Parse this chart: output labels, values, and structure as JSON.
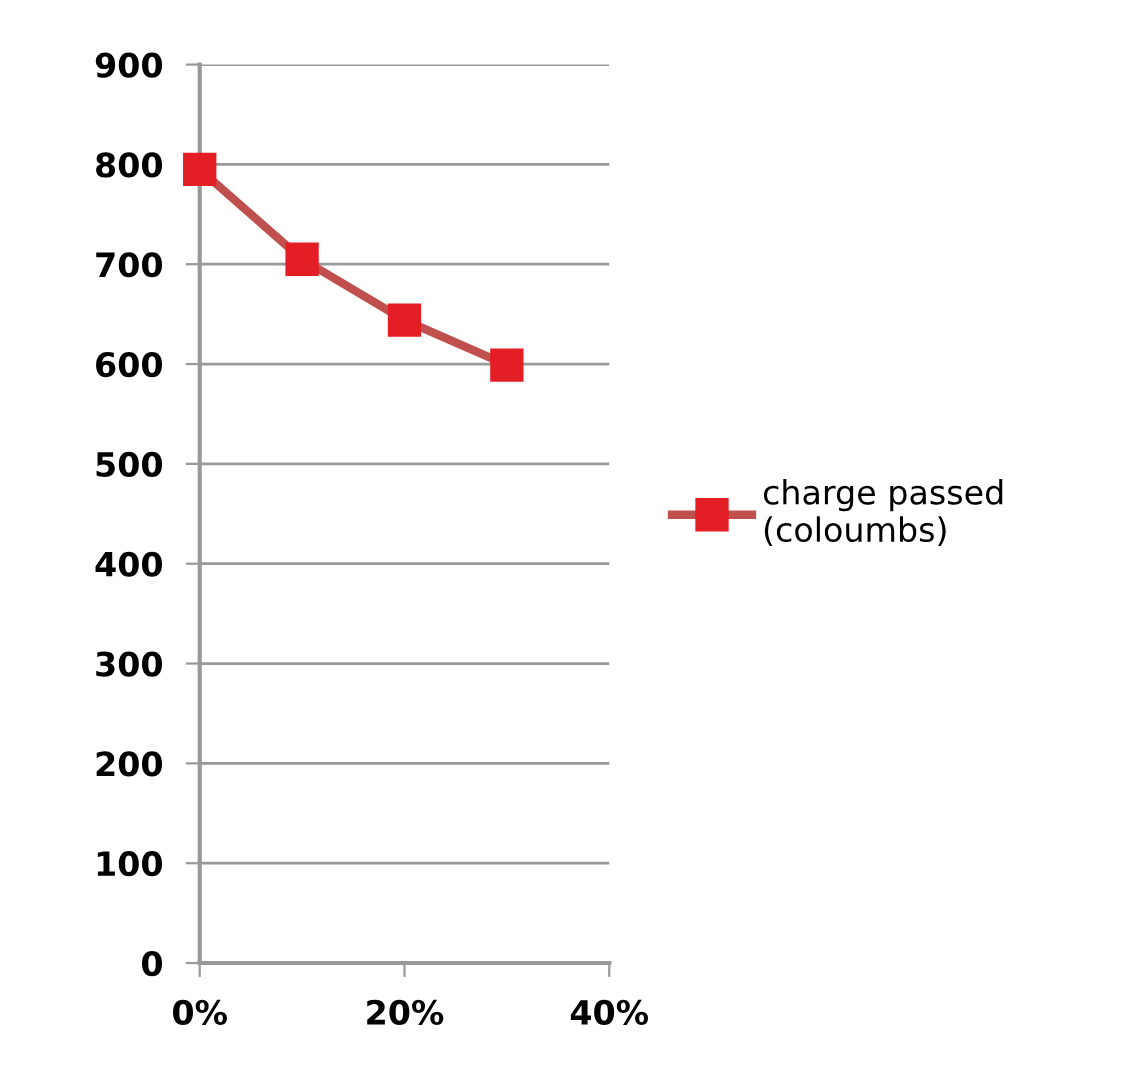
{
  "chart_data": {
    "type": "line",
    "x": [
      0,
      0.1,
      0.2,
      0.3
    ],
    "series": [
      {
        "name": "charge passed\n(coloumbs)",
        "color": "#c0504d",
        "values": [
          795,
          705,
          644,
          599
        ]
      }
    ],
    "xlim": [
      0,
      0.4
    ],
    "xticks": [
      {
        "value": 0,
        "label": "0%"
      },
      {
        "value": 0.2,
        "label": "20%"
      },
      {
        "value": 0.4,
        "label": "40%"
      }
    ],
    "ylim": [
      0,
      900
    ],
    "yticks": [
      0,
      100,
      200,
      300,
      400,
      500,
      600,
      700,
      800,
      900
    ],
    "grid": "y",
    "legend": "right",
    "marker": "square",
    "line_style": "solid"
  }
}
